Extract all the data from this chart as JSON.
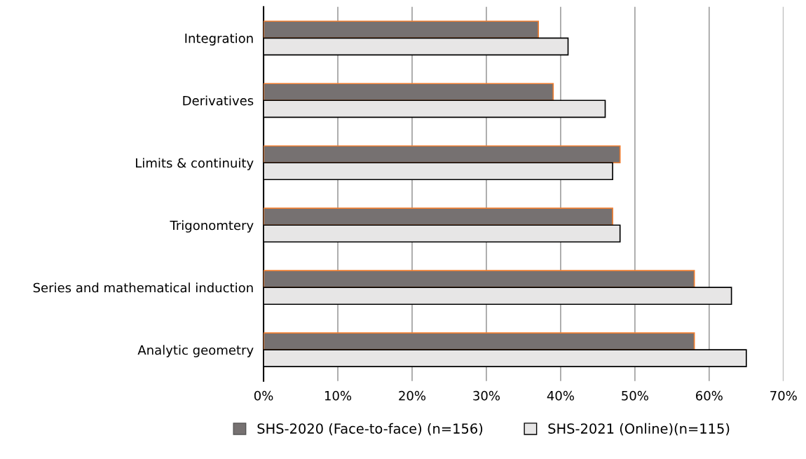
{
  "chart_data": {
    "type": "bar",
    "orientation": "horizontal",
    "categories": [
      "Integration",
      "Derivatives",
      "Limits & continuity",
      "Trigonomtery",
      "Series and mathematical induction",
      "Analytic geometry"
    ],
    "series": [
      {
        "name": "SHS-2020 (Face-to-face) (n=156)",
        "color": "#767171",
        "values": [
          37,
          39,
          48,
          47,
          58,
          58
        ]
      },
      {
        "name": "SHS-2021 (Online)(n=115)",
        "color": "#e7e6e6",
        "values": [
          41,
          46,
          47,
          48,
          63,
          65
        ]
      }
    ],
    "xlim": [
      0,
      70
    ],
    "xticks": [
      {
        "value": 0,
        "label": "0%"
      },
      {
        "value": 10,
        "label": "10%"
      },
      {
        "value": 20,
        "label": "20%"
      },
      {
        "value": 30,
        "label": "30%"
      },
      {
        "value": 40,
        "label": "40%"
      },
      {
        "value": 50,
        "label": "50%"
      },
      {
        "value": 60,
        "label": "60%"
      },
      {
        "value": 70,
        "label": "70%"
      }
    ],
    "grid": "x",
    "legend": "bottom"
  }
}
